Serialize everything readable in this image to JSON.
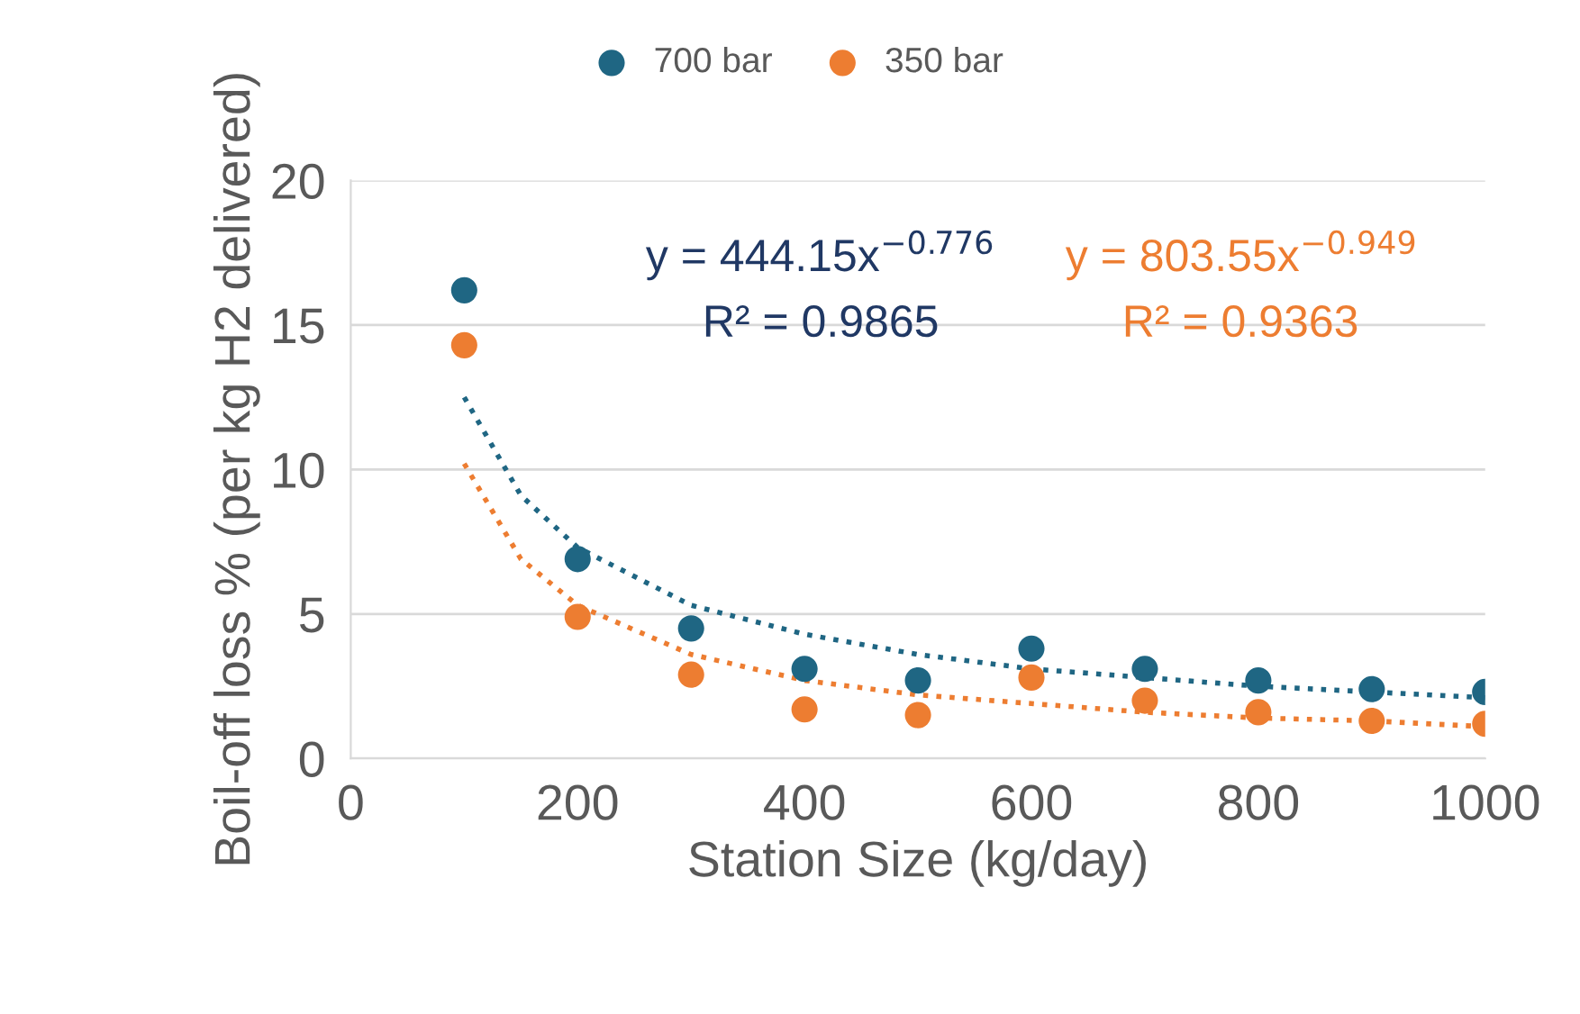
{
  "chart_data": {
    "type": "scatter",
    "xlabel": "Station Size (kg/day)",
    "ylabel": "Boil-off loss % (per kg H2 delivered)",
    "x": [
      100,
      200,
      300,
      400,
      500,
      600,
      700,
      800,
      900,
      1000
    ],
    "series": [
      {
        "name": "700 bar",
        "color": "#1f6683",
        "values": [
          16.2,
          6.9,
          4.5,
          3.1,
          2.7,
          3.8,
          3.1,
          2.7,
          2.4,
          2.3
        ]
      },
      {
        "name": "350 bar",
        "color": "#ed7d31",
        "values": [
          14.3,
          4.9,
          2.9,
          1.7,
          1.5,
          2.8,
          2.0,
          1.6,
          1.3,
          1.2
        ]
      },
      {
        "type": "line",
        "marker": "none",
        "line_style": "dotted",
        "color": "#1f6683",
        "x": [
          100,
          150,
          200,
          300,
          400,
          500,
          600,
          700,
          800,
          900,
          1000
        ],
        "values": [
          12.5,
          9.1,
          7.3,
          5.3,
          4.3,
          3.6,
          3.1,
          2.8,
          2.5,
          2.3,
          2.1
        ]
      },
      {
        "type": "line",
        "marker": "none",
        "line_style": "dotted",
        "color": "#ed7d31",
        "x": [
          100,
          150,
          200,
          300,
          400,
          500,
          600,
          700,
          800,
          900,
          1000
        ],
        "values": [
          10.2,
          6.9,
          5.3,
          3.6,
          2.7,
          2.2,
          1.9,
          1.6,
          1.4,
          1.3,
          1.1
        ]
      }
    ],
    "annotations": [
      "y = 444.15x$^{−0.776}$\nR² = 0.9865",
      "y = 803.55x$^{−0.949}$\nR² = 0.9363"
    ],
    "xlim": [
      0,
      1000
    ],
    "xticks": [
      0,
      200,
      400,
      600,
      800,
      1000
    ],
    "ylim": [
      0,
      20
    ],
    "yticks": [
      0,
      5,
      10,
      15,
      20
    ],
    "grid": "y",
    "legend": "top",
    "marker": "circle"
  }
}
